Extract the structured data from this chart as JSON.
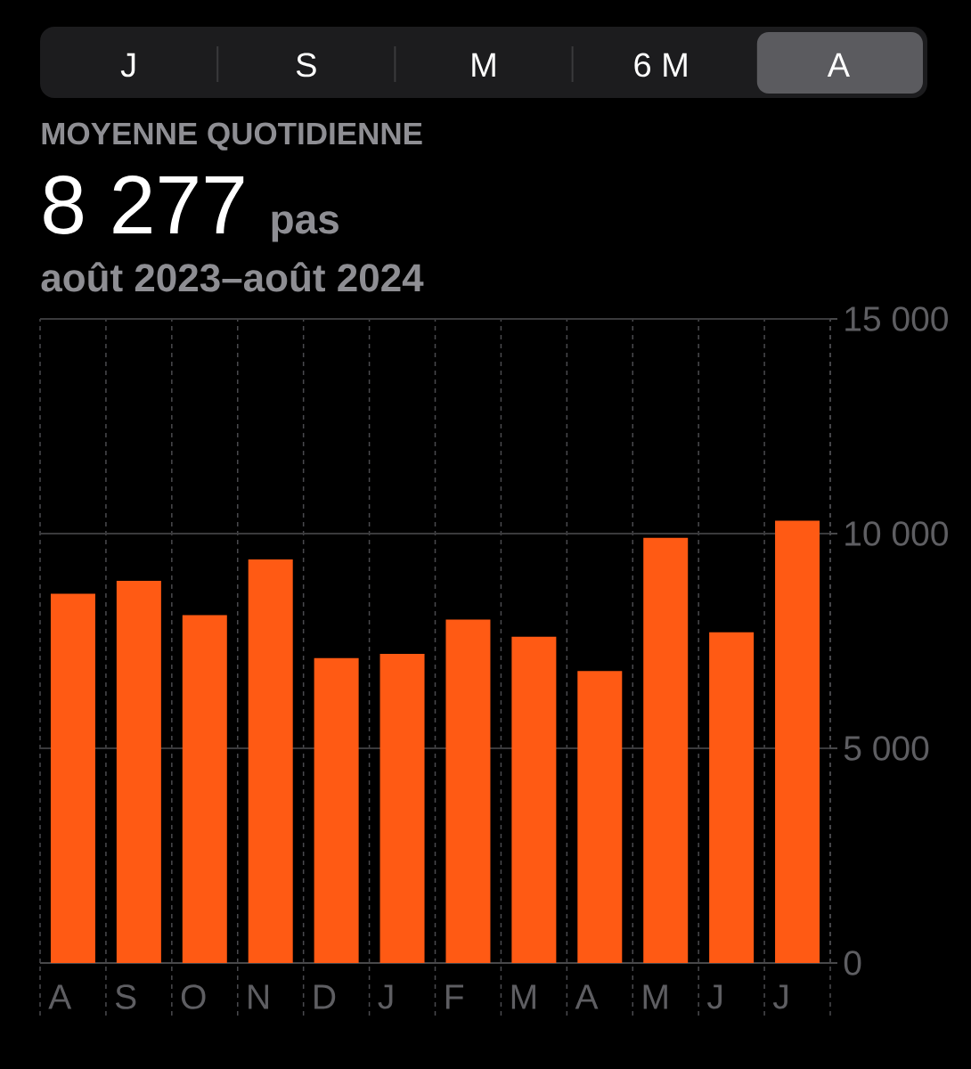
{
  "chart_data": {
    "type": "bar",
    "title": "MOYENNE QUOTIDIENNE",
    "subtitle": "août 2023–août 2024",
    "annotations": [
      "J",
      "S",
      "M",
      "6 M",
      "A",
      "8 277",
      "pas"
    ],
    "categories": [
      "A",
      "S",
      "O",
      "N",
      "D",
      "J",
      "F",
      "M",
      "A",
      "M",
      "J",
      "J"
    ],
    "values": [
      8600,
      8900,
      8100,
      9400,
      7100,
      7200,
      8000,
      7600,
      6800,
      9900,
      7700,
      10300
    ],
    "color": "#ff5a14",
    "ylim": [
      0,
      15000
    ],
    "yticks": [
      0,
      {
        "value": 5000,
        "label": "5 000"
      },
      {
        "value": 10000,
        "label": "10 000"
      },
      {
        "value": 15000,
        "label": "15 000"
      }
    ],
    "grid": true
  }
}
